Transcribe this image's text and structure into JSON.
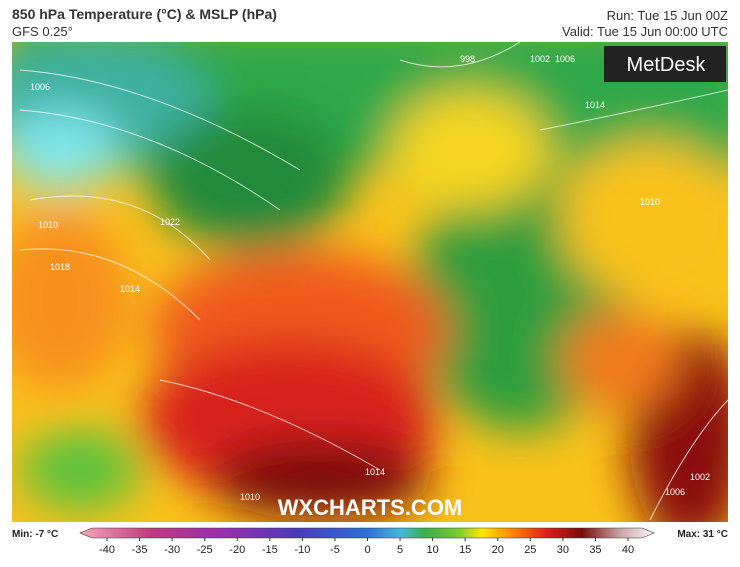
{
  "header": {
    "title": "850 hPa Temperature (°C) & MSLP (hPa)",
    "model": "GFS 0.25°",
    "run": "Run: Tue 15 Jun 00Z",
    "valid": "Valid: Tue 15 Jun 00:00 UTC"
  },
  "logo": "MetDesk",
  "watermark": "WXCHARTS.COM",
  "isobar_labels": [
    "1006",
    "1010",
    "1018",
    "1022",
    "1014",
    "998",
    "1002",
    "1006",
    "1014",
    "1010",
    "1010",
    "1014",
    "1002",
    "1006"
  ],
  "colorbar": {
    "min_label": "Min: -7 °C",
    "max_label": "Max: 31 °C",
    "ticks": [
      -40,
      -35,
      -30,
      -25,
      -20,
      -15,
      -10,
      -5,
      0,
      5,
      10,
      15,
      20,
      25,
      30,
      35,
      40
    ]
  }
}
